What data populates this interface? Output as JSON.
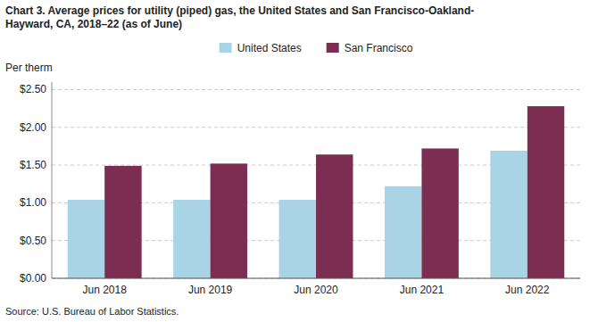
{
  "chart_data": {
    "type": "bar",
    "title": "Chart 3. Average prices for utility (piped) gas, the United States and San Francisco-Oakland-\nHayward, CA, 2018–22 (as of June)",
    "y_label": "Per therm",
    "source": "Source: U.S. Bureau of Labor Statistics.",
    "categories": [
      "Jun 2018",
      "Jun 2019",
      "Jun 2020",
      "Jun 2021",
      "Jun 2022"
    ],
    "series": [
      {
        "name": "United States",
        "color": "#a8d4e6",
        "values": [
          1.04,
          1.04,
          1.04,
          1.22,
          1.69
        ]
      },
      {
        "name": "San Francisco",
        "color": "#7B2D52",
        "values": [
          1.49,
          1.52,
          1.64,
          1.72,
          2.28
        ]
      }
    ],
    "ylim": [
      0,
      2.6
    ],
    "yticks": [
      {
        "value": 0.0,
        "label": "$0.00"
      },
      {
        "value": 0.5,
        "label": "$0.50"
      },
      {
        "value": 1.0,
        "label": "$1.00"
      },
      {
        "value": 1.5,
        "label": "$1.50"
      },
      {
        "value": 2.0,
        "label": "$2.00"
      },
      {
        "value": 2.5,
        "label": "$2.50"
      }
    ],
    "grid": true,
    "legend": "top"
  }
}
